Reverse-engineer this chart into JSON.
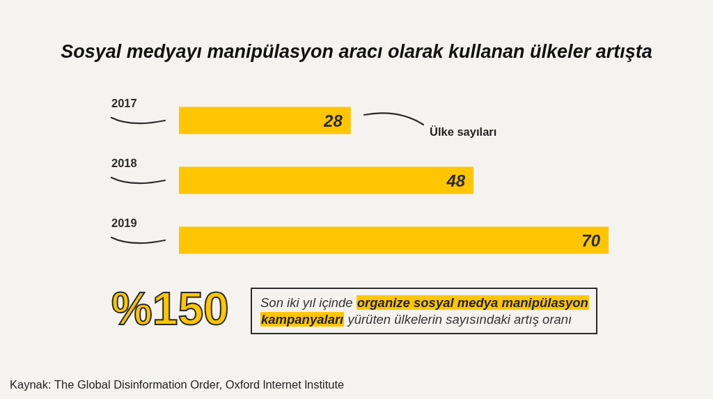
{
  "chart_data": {
    "type": "bar",
    "orientation": "horizontal",
    "title": "Sosyal medyayı manipülasyon aracı olarak kullanan ülkeler artışta",
    "categories": [
      "2017",
      "2018",
      "2019"
    ],
    "values": [
      28,
      48,
      70
    ],
    "color": "#ffc600",
    "data_labels": true,
    "annotations": [
      "Ülke sayıları",
      "%150",
      "Son iki yıl içinde",
      "organize sosyal medya manipülasyon",
      "kampanyaları",
      "yürüten ülkelerin sayısındaki artış oranı",
      "Kaynak: The Global Disinformation Order, Oxford lnternet lnstitute"
    ]
  }
}
